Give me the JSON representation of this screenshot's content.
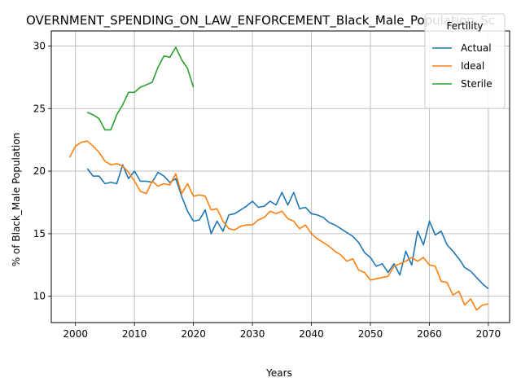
{
  "chart_data": {
    "type": "line",
    "title": "OVERNMENT_SPENDING_ON_LAW_ENFORCEMENT_Black_Male_Population_Sc",
    "xlabel": "Years",
    "ylabel": "% of Black_Male Population",
    "xlim": [
      1995.9,
      2073.6
    ],
    "ylim": [
      7.9,
      31.2
    ],
    "x_ticks": [
      2000,
      2010,
      2020,
      2030,
      2040,
      2050,
      2060,
      2070
    ],
    "y_ticks": [
      10,
      15,
      20,
      25,
      30
    ],
    "grid": true,
    "legend": {
      "title": "Fertility",
      "position": "top-right"
    },
    "series": [
      {
        "name": "Actual",
        "color": "#1f77b4",
        "x": [
          2002,
          2003,
          2004,
          2005,
          2006,
          2007,
          2008,
          2009,
          2010,
          2011,
          2012,
          2013,
          2014,
          2015,
          2016,
          2017,
          2018,
          2019,
          2020,
          2021,
          2022,
          2023,
          2024,
          2025,
          2026,
          2027,
          2028,
          2029,
          2030,
          2031,
          2032,
          2033,
          2034,
          2035,
          2036,
          2037,
          2038,
          2039,
          2040,
          2041,
          2042,
          2043,
          2044,
          2045,
          2046,
          2047,
          2048,
          2049,
          2050,
          2051,
          2052,
          2053,
          2054,
          2055,
          2056,
          2057,
          2058,
          2059,
          2060,
          2061,
          2062,
          2063,
          2064,
          2065,
          2066,
          2067,
          2068,
          2069,
          2070
        ],
        "values": [
          20.2,
          19.6,
          19.6,
          19.0,
          19.1,
          19.0,
          20.5,
          19.4,
          20.0,
          19.2,
          19.2,
          19.1,
          19.9,
          19.6,
          19.1,
          19.4,
          18.0,
          16.8,
          16.0,
          16.1,
          16.9,
          15.0,
          16.0,
          15.2,
          16.5,
          16.6,
          16.9,
          17.2,
          17.6,
          17.1,
          17.2,
          17.6,
          17.3,
          18.3,
          17.3,
          18.3,
          17.0,
          17.1,
          16.6,
          16.5,
          16.3,
          15.9,
          15.7,
          15.4,
          15.1,
          14.8,
          14.3,
          13.5,
          13.1,
          12.4,
          12.6,
          11.9,
          12.6,
          11.7,
          13.6,
          12.5,
          15.2,
          14.1,
          16.0,
          14.9,
          15.2,
          14.1,
          13.6,
          13.0,
          12.3,
          12.0,
          11.5,
          11.0,
          10.6
        ]
      },
      {
        "name": "Ideal",
        "color": "#ff7f0e",
        "x": [
          1999,
          2000,
          2001,
          2002,
          2003,
          2004,
          2005,
          2006,
          2007,
          2008,
          2009,
          2010,
          2011,
          2012,
          2013,
          2014,
          2015,
          2016,
          2017,
          2018,
          2019,
          2020,
          2021,
          2022,
          2023,
          2024,
          2025,
          2026,
          2027,
          2028,
          2029,
          2030,
          2031,
          2032,
          2033,
          2034,
          2035,
          2036,
          2037,
          2038,
          2039,
          2040,
          2041,
          2042,
          2043,
          2044,
          2045,
          2046,
          2047,
          2048,
          2049,
          2050,
          2051,
          2052,
          2053,
          2054,
          2055,
          2056,
          2057,
          2058,
          2059,
          2060,
          2061,
          2062,
          2063,
          2064,
          2065,
          2066,
          2067,
          2068,
          2069,
          2070
        ],
        "values": [
          21.1,
          22.0,
          22.3,
          22.4,
          22.0,
          21.5,
          20.8,
          20.5,
          20.6,
          20.4,
          19.9,
          19.2,
          18.4,
          18.2,
          19.2,
          18.8,
          19.0,
          18.9,
          19.8,
          18.2,
          19.0,
          18.0,
          18.1,
          18.0,
          16.9,
          17.0,
          16.0,
          15.4,
          15.3,
          15.6,
          15.7,
          15.7,
          16.1,
          16.3,
          16.8,
          16.6,
          16.8,
          16.2,
          16.0,
          15.4,
          15.7,
          15.0,
          14.6,
          14.3,
          14.0,
          13.6,
          13.3,
          12.8,
          13.0,
          12.1,
          11.9,
          11.3,
          11.4,
          11.5,
          11.6,
          12.4,
          12.6,
          12.8,
          13.1,
          12.8,
          13.1,
          12.5,
          12.4,
          11.2,
          11.1,
          10.1,
          10.4,
          9.3,
          9.8,
          8.9,
          9.3,
          9.4
        ]
      },
      {
        "name": "Sterile",
        "color": "#2ca02c",
        "x": [
          2002,
          2003,
          2004,
          2005,
          2006,
          2007,
          2008,
          2009,
          2010,
          2011,
          2012,
          2013,
          2014,
          2015,
          2016,
          2017,
          2018,
          2019,
          2020
        ],
        "values": [
          24.7,
          24.5,
          24.2,
          23.3,
          23.3,
          24.5,
          25.3,
          26.3,
          26.3,
          26.7,
          26.9,
          27.1,
          28.3,
          29.2,
          29.1,
          29.9,
          28.9,
          28.2,
          26.7
        ]
      }
    ]
  }
}
